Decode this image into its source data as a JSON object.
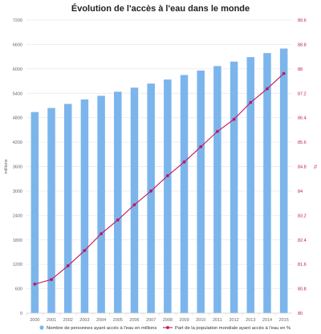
{
  "chart_data": {
    "type": "bar",
    "title": "Évolution de l'accès à l'eau dans le monde",
    "categories": [
      "2000",
      "2001",
      "2002",
      "2003",
      "2004",
      "2005",
      "2006",
      "2007",
      "2008",
      "2009",
      "2010",
      "2011",
      "2012",
      "2013",
      "2014",
      "2015"
    ],
    "series": [
      {
        "name": "Nombre de personnes ayant accès à l'eau en millions",
        "type": "bar",
        "axis": "left",
        "color": "#7cb5ec",
        "values": [
          4940,
          5040,
          5140,
          5250,
          5340,
          5440,
          5540,
          5640,
          5740,
          5850,
          5960,
          6070,
          6180,
          6290,
          6390,
          6500
        ]
      },
      {
        "name": "Part de la population mondiale ayant accès à l'eau en %",
        "type": "line",
        "axis": "right",
        "color": "#c2185b",
        "values": [
          80.95,
          81.1,
          81.55,
          82.05,
          82.6,
          83.05,
          83.55,
          84.0,
          84.5,
          84.95,
          85.45,
          85.95,
          86.35,
          86.9,
          87.35,
          87.85
        ]
      }
    ],
    "y_left": {
      "label": "millions",
      "ylim": [
        0,
        7200
      ],
      "ticks": [
        "0",
        "600",
        "1200",
        "1800",
        "2400",
        "3000",
        "3600",
        "4200",
        "4800",
        "5400",
        "6000",
        "6600",
        "7200"
      ],
      "color": "#666666"
    },
    "y_right": {
      "label": "%",
      "ylim": [
        80,
        89.6
      ],
      "ticks": [
        "80",
        "80.8",
        "81.6",
        "82.4",
        "83.2",
        "84",
        "84.8",
        "85.6",
        "86.4",
        "87.2",
        "88",
        "88.8",
        "89.6"
      ],
      "color": "#c2185b"
    },
    "grid": true,
    "legend": "bottom"
  }
}
